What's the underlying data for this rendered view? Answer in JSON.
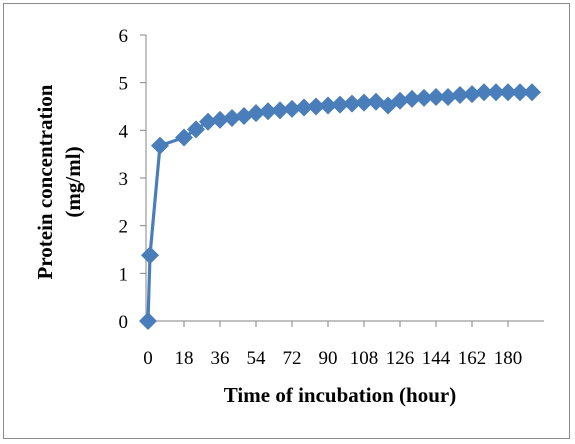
{
  "chart_data": {
    "type": "line",
    "title": "",
    "xlabel": "Time of incubation (hour)",
    "ylabel": "Protein concentration (mg/ml)",
    "ylabel_lines": [
      "Protein concentration",
      "(mg/ml)"
    ],
    "x": [
      0,
      1,
      6,
      18,
      24,
      30,
      36,
      42,
      48,
      54,
      60,
      66,
      72,
      78,
      84,
      90,
      96,
      102,
      108,
      114,
      120,
      126,
      132,
      138,
      144,
      150,
      156,
      162,
      168,
      174,
      180,
      186,
      192
    ],
    "y_ticks": [
      0,
      1,
      2,
      3,
      4,
      5,
      6
    ],
    "x_tick_labels": [
      "0",
      "18",
      "36",
      "54",
      "72",
      "90",
      "108",
      "126",
      "144",
      "162",
      "180"
    ],
    "x_tick_values": [
      0,
      18,
      36,
      54,
      72,
      90,
      108,
      126,
      144,
      162,
      180
    ],
    "xlim": [
      -1,
      198
    ],
    "ylim": [
      0,
      6
    ],
    "series": [
      {
        "values": [
          0.0,
          1.38,
          3.68,
          3.85,
          4.02,
          4.18,
          4.22,
          4.26,
          4.3,
          4.36,
          4.4,
          4.42,
          4.45,
          4.48,
          4.5,
          4.52,
          4.54,
          4.56,
          4.58,
          4.6,
          4.52,
          4.62,
          4.66,
          4.68,
          4.7,
          4.7,
          4.74,
          4.76,
          4.8,
          4.8,
          4.8,
          4.8,
          4.8
        ],
        "color": "#4a7ebb"
      }
    ],
    "grid": false,
    "legend": "none"
  }
}
